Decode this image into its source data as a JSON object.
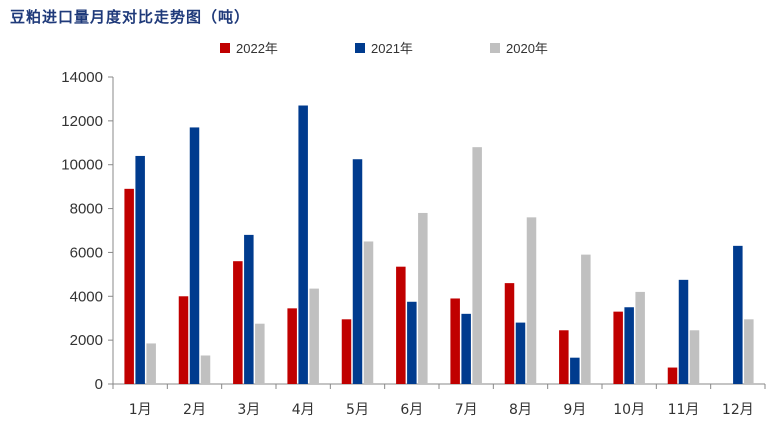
{
  "chart_data": {
    "type": "bar",
    "title": "豆粕进口量月度对比走势图（吨）",
    "categories": [
      "1月",
      "2月",
      "3月",
      "4月",
      "5月",
      "6月",
      "7月",
      "8月",
      "9月",
      "10月",
      "11月",
      "12月"
    ],
    "series": [
      {
        "name": "2022年",
        "color": "#c00000",
        "values": [
          8900,
          4000,
          5600,
          3450,
          2950,
          5350,
          3900,
          4600,
          2450,
          3300,
          750,
          null
        ]
      },
      {
        "name": "2021年",
        "color": "#003b8e",
        "values": [
          10400,
          11700,
          6800,
          12700,
          10250,
          3750,
          3200,
          2800,
          1200,
          3500,
          4750,
          6300
        ]
      },
      {
        "name": "2020年",
        "color": "#c0c0c0",
        "values": [
          1850,
          1300,
          2750,
          4350,
          6500,
          7800,
          10800,
          7600,
          5900,
          4200,
          2450,
          2950
        ]
      }
    ],
    "ylim": [
      0,
      14000
    ],
    "yticks": [
      0,
      2000,
      4000,
      6000,
      8000,
      10000,
      12000,
      14000
    ],
    "legend_position": "top-center",
    "grid": false
  }
}
